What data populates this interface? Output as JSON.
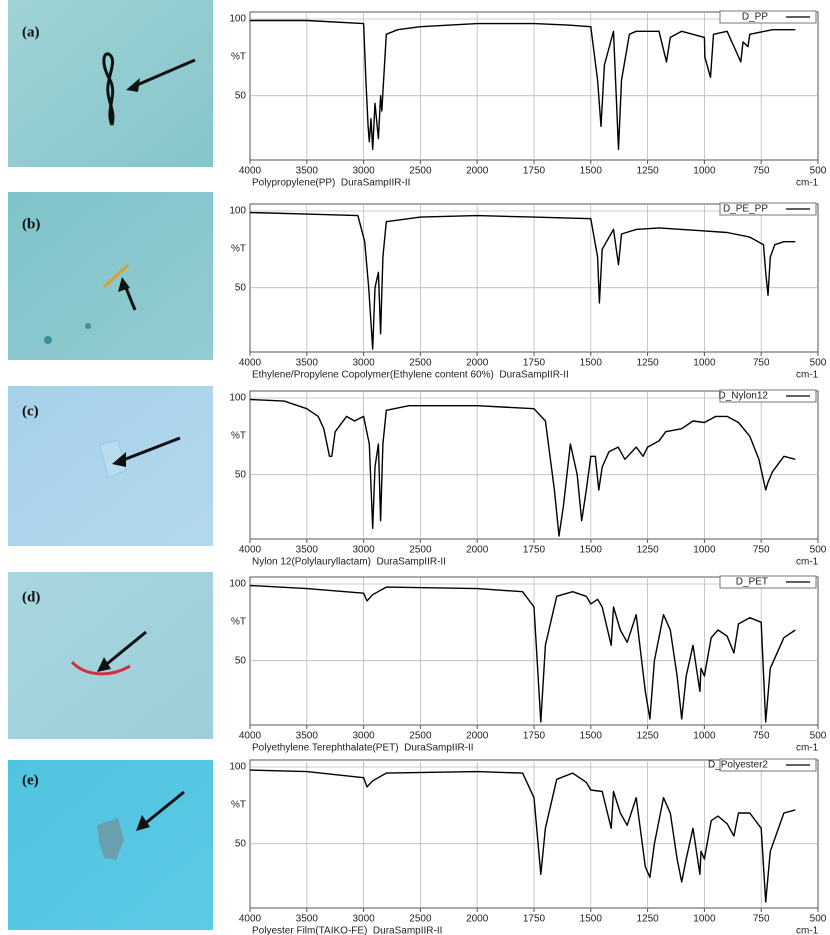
{
  "chart_data": [
    {
      "type": "line",
      "panel_label": "(a)",
      "caption": "Polypropylene(PP)  DuraSampIIR-II",
      "x_label": "cm-1",
      "y_label": "%T",
      "xlim": [
        4000,
        500
      ],
      "ylim": [
        10,
        100
      ],
      "xticks": [
        4000,
        3500,
        3000,
        2500,
        2000,
        1750,
        1500,
        1250,
        1000,
        750,
        500
      ],
      "yticks": [
        50,
        100
      ],
      "grid": true,
      "x": [
        4000,
        3500,
        3000,
        2980,
        2960,
        2950,
        2935,
        2920,
        2900,
        2870,
        2850,
        2840,
        2800,
        2700,
        2500,
        2000,
        1750,
        1600,
        1500,
        1470,
        1455,
        1440,
        1400,
        1378,
        1365,
        1330,
        1300,
        1250,
        1200,
        1167,
        1150,
        1100,
        1000,
        998,
        973,
        960,
        900,
        840,
        830,
        808,
        800,
        700,
        600
      ],
      "series": [
        {
          "name": "D_PP",
          "color": "#000000",
          "values": [
            99,
            99,
            97,
            60,
            30,
            20,
            35,
            15,
            45,
            22,
            50,
            40,
            90,
            93,
            95,
            97,
            97,
            96,
            95,
            60,
            30,
            70,
            92,
            15,
            60,
            90,
            92,
            92,
            92,
            72,
            88,
            92,
            88,
            75,
            62,
            90,
            92,
            72,
            85,
            82,
            90,
            93,
            93
          ]
        }
      ]
    },
    {
      "type": "line",
      "panel_label": "(b)",
      "caption": "Ethylene/Propylene Copolymer(Ethylene content 60%)  DuraSampIIR-II",
      "x_label": "cm-1",
      "y_label": "%T",
      "xlim": [
        4000,
        500
      ],
      "ylim": [
        10,
        100
      ],
      "xticks": [
        4000,
        3500,
        3000,
        2500,
        2000,
        1750,
        1500,
        1250,
        1000,
        750,
        500
      ],
      "yticks": [
        50,
        100
      ],
      "grid": true,
      "x": [
        4000,
        3500,
        3050,
        2990,
        2955,
        2920,
        2900,
        2870,
        2850,
        2830,
        2800,
        2500,
        2000,
        1750,
        1500,
        1470,
        1462,
        1450,
        1400,
        1378,
        1365,
        1300,
        1200,
        1100,
        1000,
        900,
        800,
        740,
        730,
        720,
        710,
        690,
        650,
        600
      ],
      "series": [
        {
          "name": "D_PE_PP",
          "color": "#000000",
          "values": [
            99,
            98,
            97,
            80,
            50,
            10,
            50,
            60,
            20,
            70,
            93,
            96,
            97,
            96,
            95,
            70,
            40,
            75,
            88,
            65,
            85,
            88,
            89,
            88,
            87,
            86,
            83,
            78,
            60,
            45,
            70,
            78,
            80,
            80
          ]
        }
      ]
    },
    {
      "type": "line",
      "panel_label": "(c)",
      "caption": "Nylon 12(Polylauryllactam)  DuraSampIIR-II",
      "x_label": "cm-1",
      "y_label": "%T",
      "xlim": [
        4000,
        500
      ],
      "ylim": [
        10,
        100
      ],
      "xticks": [
        4000,
        3500,
        3000,
        2500,
        2000,
        1750,
        1500,
        1250,
        1000,
        750,
        500
      ],
      "yticks": [
        50,
        100
      ],
      "grid": true,
      "x": [
        4000,
        3700,
        3500,
        3400,
        3350,
        3300,
        3280,
        3250,
        3150,
        3080,
        3000,
        2950,
        2920,
        2900,
        2870,
        2850,
        2830,
        2800,
        2600,
        2000,
        1750,
        1700,
        1660,
        1640,
        1620,
        1590,
        1560,
        1540,
        1520,
        1500,
        1480,
        1465,
        1450,
        1420,
        1380,
        1350,
        1300,
        1270,
        1250,
        1200,
        1170,
        1100,
        1050,
        1000,
        950,
        900,
        850,
        800,
        760,
        730,
        720,
        700,
        650,
        600
      ],
      "series": [
        {
          "name": "D_Nylon12",
          "color": "#000000",
          "values": [
            99,
            98,
            93,
            88,
            80,
            62,
            62,
            78,
            88,
            85,
            88,
            70,
            15,
            55,
            70,
            20,
            70,
            92,
            95,
            95,
            93,
            85,
            40,
            10,
            30,
            70,
            50,
            20,
            40,
            62,
            62,
            40,
            55,
            65,
            68,
            60,
            68,
            62,
            68,
            72,
            78,
            80,
            85,
            84,
            88,
            88,
            84,
            75,
            60,
            40,
            45,
            52,
            62,
            60
          ]
        }
      ]
    },
    {
      "type": "line",
      "panel_label": "(d)",
      "caption": "Polyethylene Terephthalate(PET)  DuraSampIIR-II",
      "x_label": "cm-1",
      "y_label": "%T",
      "xlim": [
        4000,
        500
      ],
      "ylim": [
        10,
        100
      ],
      "xticks": [
        4000,
        3500,
        3000,
        2500,
        2000,
        1750,
        1500,
        1250,
        1000,
        750,
        500
      ],
      "yticks": [
        50,
        100
      ],
      "grid": true,
      "x": [
        4000,
        3500,
        3000,
        2970,
        2920,
        2800,
        2000,
        1800,
        1750,
        1720,
        1700,
        1650,
        1580,
        1520,
        1500,
        1470,
        1450,
        1410,
        1400,
        1370,
        1340,
        1300,
        1260,
        1240,
        1220,
        1180,
        1150,
        1120,
        1100,
        1080,
        1050,
        1020,
        1015,
        1000,
        970,
        940,
        900,
        870,
        850,
        800,
        750,
        730,
        710,
        650,
        600
      ],
      "series": [
        {
          "name": "D_PET",
          "color": "#000000",
          "values": [
            99,
            97,
            94,
            89,
            93,
            98,
            97,
            95,
            85,
            10,
            60,
            92,
            95,
            92,
            87,
            90,
            85,
            60,
            85,
            70,
            62,
            80,
            30,
            12,
            50,
            80,
            70,
            40,
            12,
            40,
            60,
            30,
            45,
            40,
            65,
            70,
            66,
            55,
            74,
            78,
            75,
            10,
            45,
            65,
            70
          ]
        }
      ]
    },
    {
      "type": "line",
      "panel_label": "(e)",
      "caption": "Polyester Film(TAIKO-FE)  DuraSampIIR-II",
      "x_label": "cm-1",
      "y_label": "%T",
      "xlim": [
        4000,
        500
      ],
      "ylim": [
        10,
        100
      ],
      "xticks": [
        4000,
        3500,
        3000,
        2500,
        2000,
        1750,
        1500,
        1250,
        1000,
        750,
        500
      ],
      "yticks": [
        50,
        100
      ],
      "grid": true,
      "x": [
        4000,
        3500,
        3000,
        2970,
        2920,
        2800,
        2000,
        1800,
        1750,
        1720,
        1700,
        1650,
        1580,
        1520,
        1500,
        1450,
        1410,
        1400,
        1370,
        1340,
        1300,
        1260,
        1240,
        1220,
        1180,
        1150,
        1120,
        1100,
        1080,
        1050,
        1020,
        1015,
        1000,
        970,
        940,
        900,
        870,
        850,
        800,
        750,
        730,
        710,
        650,
        600
      ],
      "series": [
        {
          "name": "D_Polyester2",
          "color": "#000000",
          "values": [
            98,
            97,
            93,
            87,
            91,
            96,
            97,
            96,
            80,
            30,
            60,
            92,
            96,
            90,
            85,
            84,
            60,
            84,
            70,
            62,
            80,
            35,
            28,
            50,
            80,
            70,
            40,
            25,
            40,
            60,
            30,
            45,
            40,
            65,
            68,
            63,
            55,
            70,
            70,
            60,
            12,
            45,
            70,
            72
          ]
        }
      ]
    }
  ]
}
